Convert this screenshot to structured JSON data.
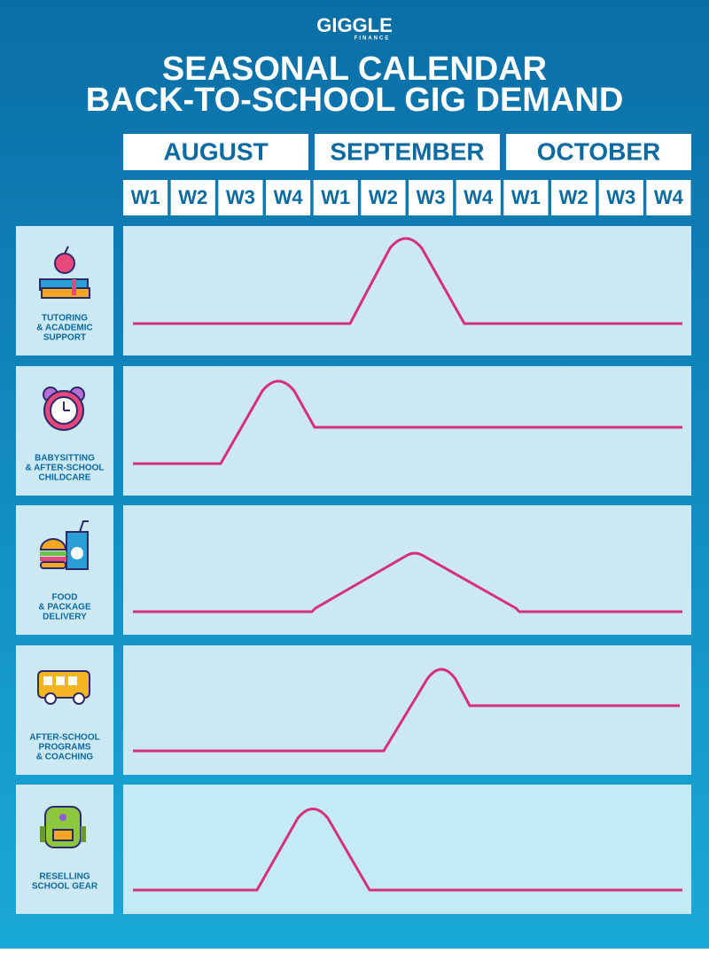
{
  "logo": {
    "name": "GIGGLE",
    "tagline": "FINANCE"
  },
  "title": [
    "SEASONAL CALENDAR",
    "BACK-TO-SCHOOL GIG DEMAND"
  ],
  "months": [
    "AUGUST",
    "SEPTEMBER",
    "OCTOBER"
  ],
  "weeks": [
    "W1",
    "W2",
    "W3",
    "W4",
    "W1",
    "W2",
    "W3",
    "W4",
    "W1",
    "W2",
    "W3",
    "W4"
  ],
  "rows": [
    {
      "label": [
        "TUTORING",
        "& ACADEMIC",
        "SUPPORT"
      ]
    },
    {
      "label": [
        "BABYSITTING",
        "& AFTER-SCHOOL",
        "CHILDCARE"
      ]
    },
    {
      "label": [
        "FOOD",
        "& PACKAGE",
        "DELIVERY"
      ]
    },
    {
      "label": [
        "AFTER-SCHOOL",
        "PROGRAMS",
        "& COACHING"
      ]
    },
    {
      "label": [
        "RESELLING",
        "SCHOOL GEAR"
      ]
    }
  ]
}
